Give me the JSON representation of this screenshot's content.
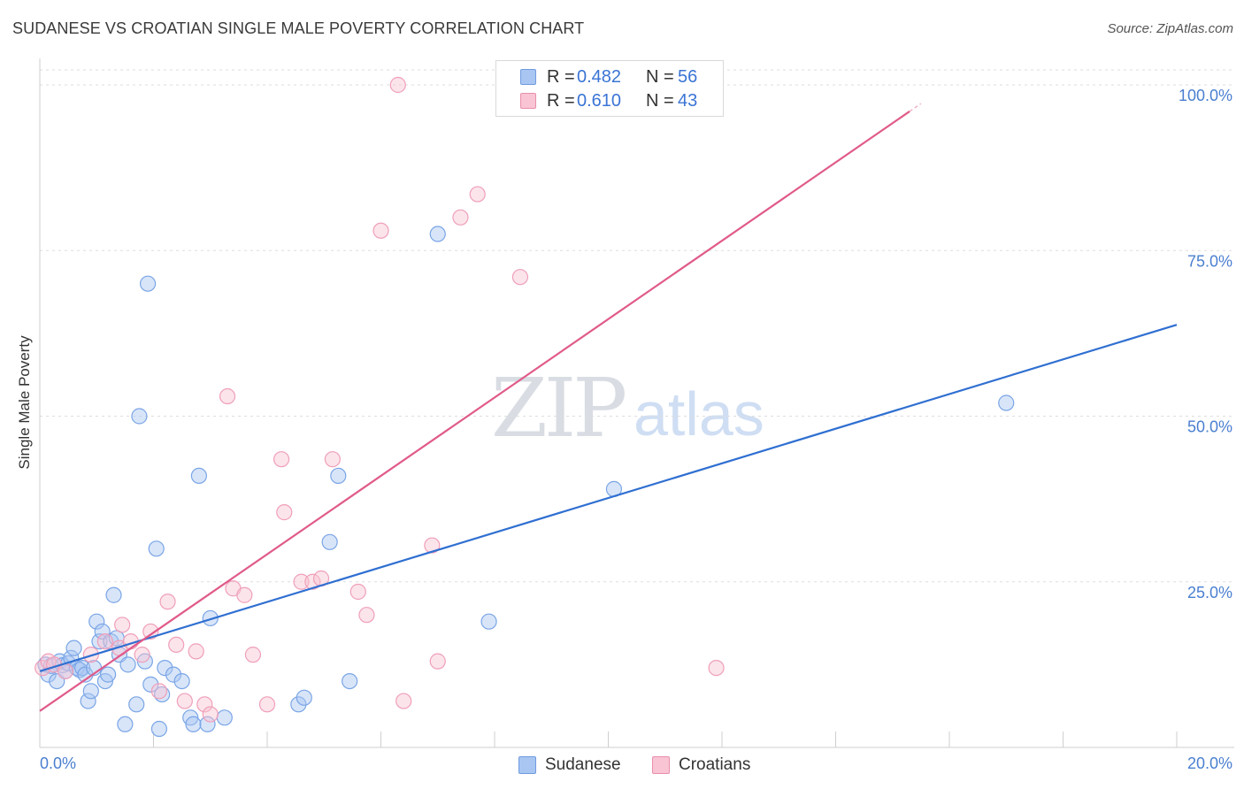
{
  "title": "SUDANESE VS CROATIAN SINGLE MALE POVERTY CORRELATION CHART",
  "source": "Source: ZipAtlas.com",
  "watermark": {
    "zip": "ZIP",
    "atlas": "atlas"
  },
  "legend_top": {
    "rows": [
      {
        "r_label": "R =",
        "r_value": "0.482",
        "n_label": "N =",
        "n_value": "56"
      },
      {
        "r_label": "R =",
        "r_value": "0.610",
        "n_label": "N =",
        "n_value": "43"
      }
    ]
  },
  "legend_bottom": {
    "items": [
      "Sudanese",
      "Croatians"
    ]
  },
  "colors": {
    "sudanese_fill": "#a9c6f2",
    "sudanese_line": "#2f6fd1",
    "croatian_fill": "#f9c4d3",
    "croatian_line": "#e05a8a",
    "tick": "#4a7fd0"
  },
  "chart_data": {
    "type": "scatter",
    "title": "SUDANESE VS CROATIAN SINGLE MALE POVERTY CORRELATION CHART",
    "xlabel": "",
    "ylabel": "Single Male Poverty",
    "xlim": [
      0,
      20
    ],
    "ylim": [
      0,
      100
    ],
    "x_tick_labels": [
      "0.0%",
      "20.0%"
    ],
    "y_tick_labels": [
      "25.0%",
      "50.0%",
      "75.0%",
      "100.0%"
    ],
    "y_ticks": [
      25,
      50,
      75,
      100
    ],
    "grid": true,
    "legend_position": "top-center",
    "series": [
      {
        "name": "Sudanese",
        "points": [
          [
            0.1,
            12.5
          ],
          [
            0.15,
            11
          ],
          [
            0.2,
            12.3
          ],
          [
            0.3,
            10
          ],
          [
            0.35,
            13
          ],
          [
            0.4,
            12.4
          ],
          [
            0.45,
            11.5
          ],
          [
            0.5,
            12.7
          ],
          [
            0.55,
            13.5
          ],
          [
            0.6,
            15
          ],
          [
            0.65,
            12
          ],
          [
            0.7,
            11.7
          ],
          [
            0.75,
            12
          ],
          [
            0.8,
            11
          ],
          [
            0.85,
            7
          ],
          [
            0.9,
            8.5
          ],
          [
            0.95,
            12
          ],
          [
            1.0,
            19
          ],
          [
            1.05,
            16
          ],
          [
            1.1,
            17.5
          ],
          [
            1.15,
            10
          ],
          [
            1.2,
            11
          ],
          [
            1.25,
            16
          ],
          [
            1.3,
            23
          ],
          [
            1.35,
            16.5
          ],
          [
            1.4,
            14
          ],
          [
            1.5,
            3.5
          ],
          [
            1.55,
            12.5
          ],
          [
            1.7,
            6.5
          ],
          [
            1.75,
            50
          ],
          [
            1.85,
            13
          ],
          [
            1.9,
            70
          ],
          [
            1.95,
            9.5
          ],
          [
            2.1,
            2.8
          ],
          [
            2.05,
            30
          ],
          [
            2.15,
            8
          ],
          [
            2.2,
            12
          ],
          [
            2.35,
            11
          ],
          [
            2.5,
            10
          ],
          [
            2.65,
            4.5
          ],
          [
            2.7,
            3.5
          ],
          [
            2.8,
            41
          ],
          [
            2.95,
            3.5
          ],
          [
            3.0,
            19.5
          ],
          [
            3.25,
            4.5
          ],
          [
            4.55,
            6.5
          ],
          [
            4.65,
            7.5
          ],
          [
            5.1,
            31
          ],
          [
            5.25,
            41
          ],
          [
            5.45,
            10
          ],
          [
            7.0,
            77.5
          ],
          [
            7.9,
            19
          ],
          [
            10.1,
            39
          ],
          [
            17.0,
            52
          ]
        ],
        "trend": {
          "x": [
            0,
            20
          ],
          "y": [
            11.5,
            63.8
          ]
        }
      },
      {
        "name": "Croatians",
        "points": [
          [
            0.05,
            12
          ],
          [
            0.15,
            13
          ],
          [
            0.25,
            12.5
          ],
          [
            0.45,
            11.5
          ],
          [
            0.9,
            14
          ],
          [
            1.15,
            16
          ],
          [
            1.4,
            15
          ],
          [
            1.45,
            18.5
          ],
          [
            1.6,
            16
          ],
          [
            1.8,
            14
          ],
          [
            1.95,
            17.5
          ],
          [
            2.1,
            8.5
          ],
          [
            2.25,
            22
          ],
          [
            2.4,
            15.5
          ],
          [
            2.55,
            7
          ],
          [
            2.75,
            14.5
          ],
          [
            2.9,
            6.5
          ],
          [
            3.0,
            5
          ],
          [
            3.3,
            53
          ],
          [
            3.4,
            24
          ],
          [
            3.6,
            23
          ],
          [
            3.75,
            14
          ],
          [
            4.0,
            6.5
          ],
          [
            4.3,
            35.5
          ],
          [
            4.25,
            43.5
          ],
          [
            4.6,
            25
          ],
          [
            4.8,
            25
          ],
          [
            4.95,
            25.5
          ],
          [
            5.15,
            43.5
          ],
          [
            5.6,
            23.5
          ],
          [
            5.75,
            20
          ],
          [
            6.0,
            78
          ],
          [
            6.3,
            100
          ],
          [
            6.4,
            7
          ],
          [
            6.9,
            30.5
          ],
          [
            7.0,
            13
          ],
          [
            7.4,
            80
          ],
          [
            7.7,
            83.5
          ],
          [
            8.45,
            71
          ],
          [
            11.9,
            12
          ]
        ],
        "trend": {
          "x": [
            0,
            15.3
          ],
          "y": [
            5.5,
            96
          ]
        }
      }
    ]
  }
}
